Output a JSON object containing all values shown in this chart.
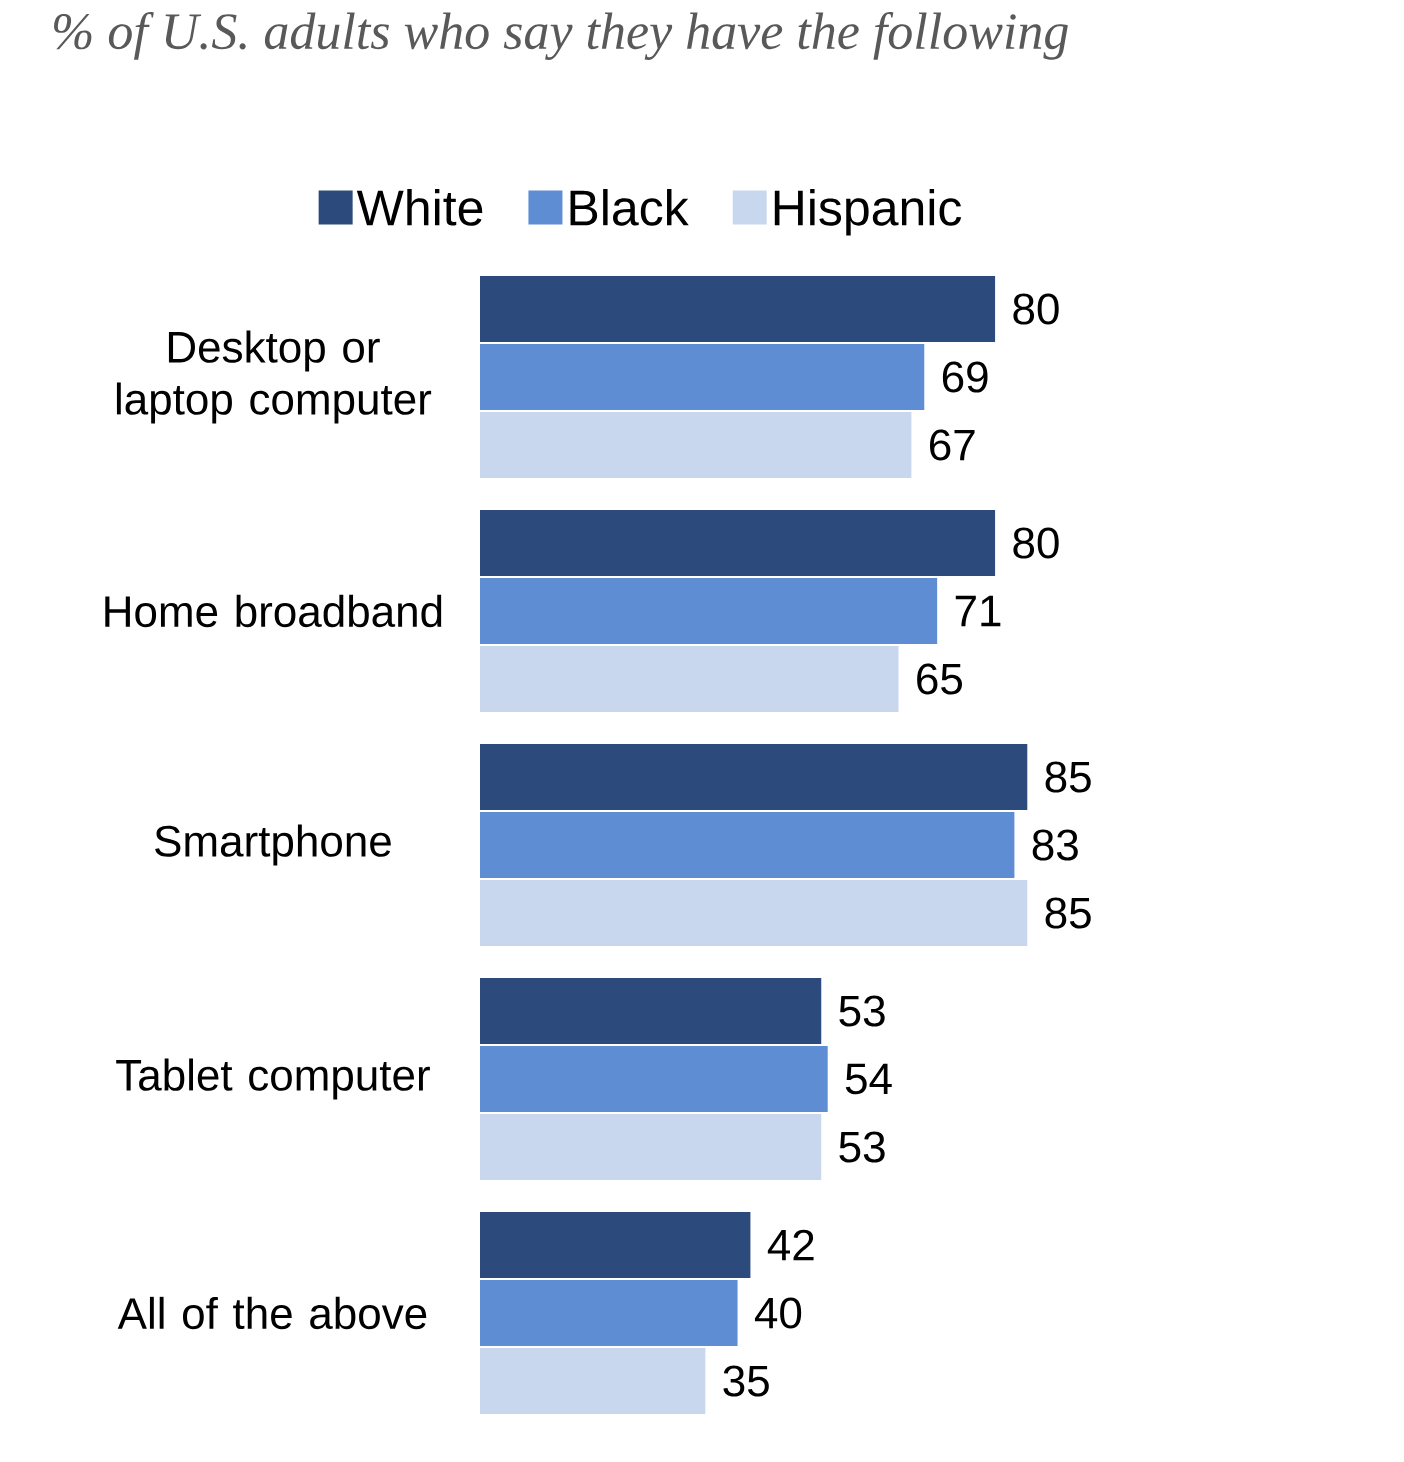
{
  "chart_data": {
    "type": "bar",
    "orientation": "horizontal",
    "title": "% of U.S. adults who say they have the following",
    "categories": [
      "Desktop or laptop computer",
      "Home broadband",
      "Smartphone",
      "Tablet computer",
      "All of the above"
    ],
    "series": [
      {
        "name": "White",
        "color": "#2c4a7c",
        "values": [
          80,
          80,
          85,
          53,
          42
        ]
      },
      {
        "name": "Black",
        "color": "#5f8dd3",
        "values": [
          69,
          71,
          83,
          54,
          40
        ]
      },
      {
        "name": "Hispanic",
        "color": "#c9d7ee",
        "values": [
          67,
          65,
          85,
          53,
          35
        ]
      }
    ],
    "data_labels": true,
    "legend": "top"
  }
}
